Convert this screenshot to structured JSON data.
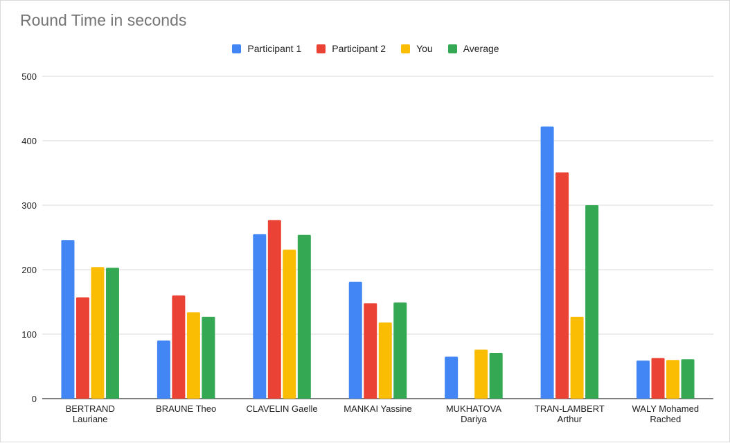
{
  "chart_data": {
    "type": "bar",
    "title": "Round Time in seconds",
    "xlabel": "",
    "ylabel": "",
    "ylim": [
      0,
      500
    ],
    "yticks": [
      0,
      100,
      200,
      300,
      400,
      500
    ],
    "grid": true,
    "legend_position": "top-center",
    "categories": [
      [
        "BERTRAND",
        "Lauriane"
      ],
      [
        "BRAUNE Theo"
      ],
      [
        "CLAVELIN Gaelle"
      ],
      [
        "MANKAI Yassine"
      ],
      [
        "MUKHATOVA",
        "Dariya"
      ],
      [
        "TRAN-LAMBERT",
        "Arthur"
      ],
      [
        "WALY Mohamed",
        "Rached"
      ]
    ],
    "series": [
      {
        "name": "Participant 1",
        "color": "#4285f4",
        "values": [
          246,
          90,
          255,
          181,
          65,
          422,
          59
        ]
      },
      {
        "name": "Participant 2",
        "color": "#ea4335",
        "values": [
          157,
          160,
          277,
          148,
          null,
          351,
          63
        ]
      },
      {
        "name": "You",
        "color": "#fbbc04",
        "values": [
          204,
          134,
          231,
          118,
          76,
          127,
          60
        ]
      },
      {
        "name": "Average",
        "color": "#34a853",
        "values": [
          203,
          127,
          254,
          149,
          71,
          300,
          61
        ]
      }
    ]
  }
}
